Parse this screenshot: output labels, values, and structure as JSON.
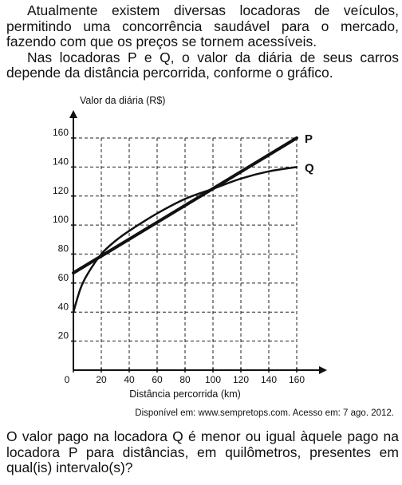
{
  "intro": {
    "paragraph1": "Atualmente existem diversas locadoras de veículos, permitindo uma concorrência saudável para o mercado, fazendo com que os preços se tornem acessíveis.",
    "paragraph2": "Nas locadoras P e Q, o valor da diária de seus carros depende da distância percorrida, conforme o gráfico."
  },
  "chart_data": {
    "type": "line",
    "ylabel": "Valor da diária (R$)",
    "xlabel": "Distância percorrida (km)",
    "xlim": [
      0,
      160
    ],
    "ylim": [
      0,
      160
    ],
    "x_ticks": [
      "0",
      "20",
      "40",
      "60",
      "80",
      "100",
      "120",
      "140",
      "160"
    ],
    "y_ticks": [
      "20",
      "40",
      "60",
      "80",
      "100",
      "120",
      "140",
      "160"
    ],
    "grid": true,
    "series": [
      {
        "name": "P",
        "x": [
          0,
          160
        ],
        "values": [
          67,
          160
        ]
      },
      {
        "name": "Q",
        "x": [
          0,
          5,
          10,
          20,
          30,
          40,
          60,
          80,
          100,
          120,
          140,
          160
        ],
        "values": [
          40,
          56,
          66,
          80,
          89,
          96,
          108,
          118,
          125,
          132,
          137,
          140
        ]
      }
    ]
  },
  "source": "Disponível em: www.sempretops.com. Acesso em: 7 ago. 2012.",
  "question": "O valor pago na locadora Q é menor ou igual àquele pago na locadora P para distâncias, em quilômetros, presentes em qual(is) intervalo(s)?"
}
